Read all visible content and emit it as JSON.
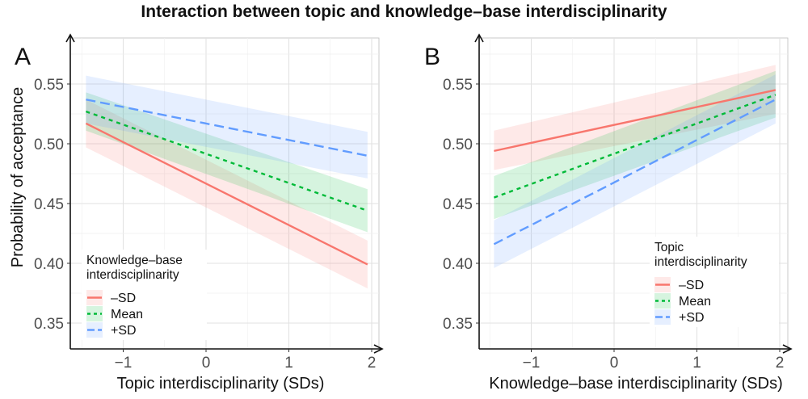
{
  "title": "Interaction between topic and knowledge–base interdisciplinarity",
  "colors": {
    "minus_sd": "#F8766D",
    "mean": "#00BA38",
    "plus_sd": "#619CFF",
    "grid": "#e5e5e5",
    "axis": "#111111"
  },
  "chart_data": [
    {
      "type": "line",
      "panel": "A",
      "title": "",
      "xlabel": "Topic interdisciplinarity (SDs)",
      "ylabel": "Probability of acceptance",
      "xlim": [
        -1.6,
        2.1
      ],
      "ylim": [
        0.33,
        0.59
      ],
      "xticks": [
        -1,
        0,
        1,
        2
      ],
      "xtick_labels": [
        "−1",
        "0",
        "1",
        "2"
      ],
      "yticks": [
        0.35,
        0.4,
        0.45,
        0.5,
        0.55
      ],
      "ytick_labels": [
        "0.35",
        "0.40",
        "0.45",
        "0.50",
        "0.55"
      ],
      "grid": true,
      "legend_title": [
        "Knowledge–base",
        "interdisciplinarity"
      ],
      "legend_position": "bottom-left",
      "x": [
        -1.45,
        1.95
      ],
      "series": [
        {
          "name": "–SD",
          "style": "solid",
          "color_key": "minus_sd",
          "values": [
            0.517,
            0.399
          ],
          "lower": [
            0.497,
            0.379
          ],
          "upper": [
            0.537,
            0.419
          ]
        },
        {
          "name": "Mean",
          "style": "dotted",
          "color_key": "mean",
          "values": [
            0.527,
            0.444
          ],
          "lower": [
            0.511,
            0.426
          ],
          "upper": [
            0.543,
            0.462
          ]
        },
        {
          "name": "+SD",
          "style": "dashed",
          "color_key": "plus_sd",
          "values": [
            0.537,
            0.49
          ],
          "lower": [
            0.517,
            0.471
          ],
          "upper": [
            0.557,
            0.51
          ]
        }
      ]
    },
    {
      "type": "line",
      "panel": "B",
      "title": "",
      "xlabel": "Knowledge–base interdisciplinarity (SDs)",
      "ylabel": "",
      "xlim": [
        -1.6,
        2.1
      ],
      "ylim": [
        0.33,
        0.59
      ],
      "xticks": [
        -1,
        0,
        1,
        2
      ],
      "xtick_labels": [
        "−1",
        "0",
        "1",
        "2"
      ],
      "yticks": [
        0.35,
        0.4,
        0.45,
        0.5,
        0.55
      ],
      "ytick_labels": [
        "0.35",
        "0.40",
        "0.45",
        "0.50",
        "0.55"
      ],
      "grid": true,
      "legend_title": [
        "Topic",
        "interdisciplinarity"
      ],
      "legend_position": "bottom-right",
      "x": [
        -1.45,
        1.95
      ],
      "series": [
        {
          "name": "–SD",
          "style": "solid",
          "color_key": "minus_sd",
          "values": [
            0.494,
            0.545
          ],
          "lower": [
            0.478,
            0.525
          ],
          "upper": [
            0.511,
            0.566
          ]
        },
        {
          "name": "Mean",
          "style": "dotted",
          "color_key": "mean",
          "values": [
            0.455,
            0.541
          ],
          "lower": [
            0.437,
            0.522
          ],
          "upper": [
            0.473,
            0.561
          ]
        },
        {
          "name": "+SD",
          "style": "dashed",
          "color_key": "plus_sd",
          "values": [
            0.416,
            0.537
          ],
          "lower": [
            0.396,
            0.517
          ],
          "upper": [
            0.436,
            0.558
          ]
        }
      ]
    }
  ]
}
